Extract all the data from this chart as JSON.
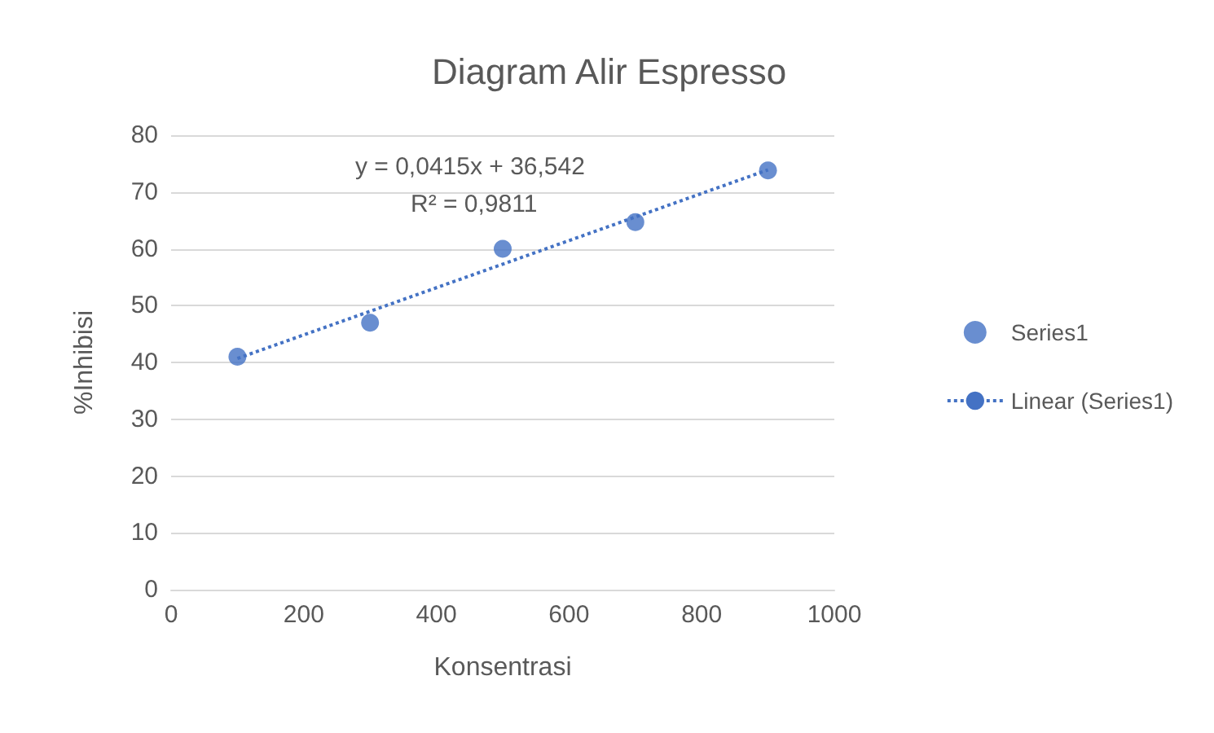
{
  "chart_data": {
    "type": "scatter",
    "title": "Diagram Alir Espresso",
    "xlabel": "Konsentrasi",
    "ylabel": "%Inhibisi",
    "x": [
      100,
      300,
      500,
      700,
      900
    ],
    "series": [
      {
        "name": "Series1",
        "color": "#4472c4",
        "marker": "circle",
        "values": [
          41,
          47,
          60,
          64.7,
          73.8
        ]
      },
      {
        "name": "Linear (Series1)",
        "type": "line",
        "color": "#4472c4",
        "line_style": "dotted",
        "marker": "none",
        "x": [
          100,
          900
        ],
        "values": [
          40.7,
          73.9
        ]
      }
    ],
    "annotations": [
      "y = 0,0415x + 36,542",
      "R² = 0,9811"
    ],
    "xlim": [
      0,
      1000
    ],
    "xticks": [
      0,
      200,
      400,
      600,
      800,
      1000
    ],
    "ylim": [
      0,
      80
    ],
    "yticks": [
      0,
      10,
      20,
      30,
      40,
      50,
      60,
      70,
      80
    ],
    "grid": "y",
    "legend": "right"
  }
}
